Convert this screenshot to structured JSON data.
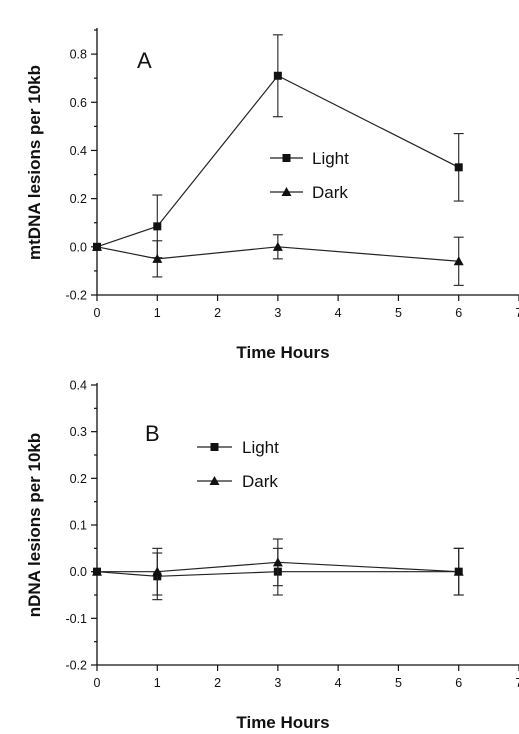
{
  "chart_data": [
    {
      "type": "line",
      "panel_label": "A",
      "xlabel": "Time Hours",
      "ylabel": "mtDNA lesions per 10kb",
      "xlim": [
        0,
        7
      ],
      "ylim": [
        -0.2,
        0.9
      ],
      "xticks": [
        "0",
        "1",
        "2",
        "3",
        "4",
        "5",
        "6",
        "7"
      ],
      "yticks": [
        "-0.2",
        "0.0",
        "0.2",
        "0.4",
        "0.6",
        "0.8"
      ],
      "legend": {
        "placement": "center-right"
      },
      "x": [
        0,
        1,
        3,
        6
      ],
      "series": [
        {
          "name": "Light",
          "marker": "square",
          "values": [
            0.0,
            0.085,
            0.71,
            0.33
          ],
          "err": [
            0.0,
            0.13,
            0.17,
            0.14
          ]
        },
        {
          "name": "Dark",
          "marker": "triangle",
          "values": [
            0.0,
            -0.05,
            0.0,
            -0.06
          ],
          "err": [
            0.0,
            0.075,
            0.05,
            0.1
          ]
        }
      ]
    },
    {
      "type": "line",
      "panel_label": "B",
      "xlabel": "Time Hours",
      "ylabel": "nDNA lesions per 10kb",
      "xlim": [
        0,
        7
      ],
      "ylim": [
        -0.2,
        0.4
      ],
      "xticks": [
        "0",
        "1",
        "2",
        "3",
        "4",
        "5",
        "6",
        "7"
      ],
      "yticks": [
        "-0.2",
        "-0.1",
        "0.0",
        "0.1",
        "0.2",
        "0.3",
        "0.4"
      ],
      "legend": {
        "placement": "upper-center"
      },
      "x": [
        0,
        1,
        3,
        6
      ],
      "series": [
        {
          "name": "Light",
          "marker": "square",
          "values": [
            0.0,
            -0.01,
            0.0,
            0.0
          ],
          "err": [
            0.0,
            0.05,
            0.05,
            0.05
          ]
        },
        {
          "name": "Dark",
          "marker": "triangle",
          "values": [
            0.0,
            0.0,
            0.02,
            0.0
          ],
          "err": [
            0.0,
            0.05,
            0.05,
            0.05
          ]
        }
      ]
    }
  ]
}
